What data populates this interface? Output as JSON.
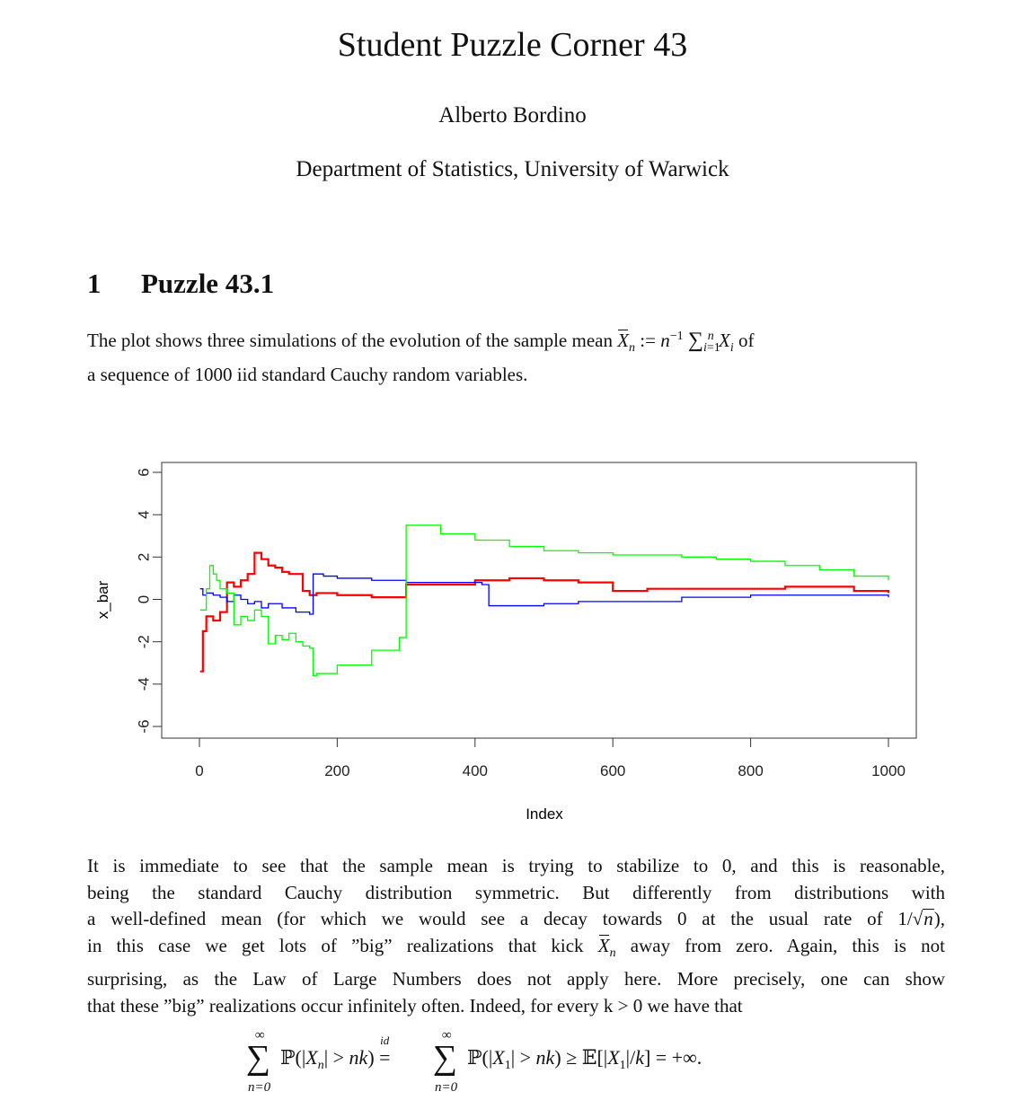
{
  "header": {
    "title": "Student Puzzle Corner 43",
    "author": "Alberto Bordino",
    "affiliation": "Department of Statistics, University of Warwick"
  },
  "section": {
    "number": "1",
    "title": "Puzzle 43.1"
  },
  "intro": {
    "line1_a": "The plot shows three simulations of the evolution of the sample mean",
    "line1_b": "of",
    "line2": "a sequence of 1000 iid standard Cauchy random variables."
  },
  "body": {
    "l1": "It is immediate to see that the sample mean is trying to stabilize to 0, and this is reasonable,",
    "l2": "being the standard Cauchy distribution symmetric. But differently from distributions with",
    "l3_a": "a well-defined mean (for which we would see a decay towards 0 at the usual rate of 1/",
    "l3_b": "),",
    "l4_a": "in this case we get lots of ”big” realizations that kick",
    "l4_b": "away from zero. Again, this is not",
    "l5": "surprising, as the Law of Large Numbers does not apply here. More precisely, one can show",
    "l6": "that these ”big” realizations occur infinitely often. Indeed, for every k > 0 we have that"
  },
  "chart_data": {
    "type": "line",
    "xlabel": "Index",
    "ylabel": "x_bar",
    "xlim": [
      0,
      1000
    ],
    "ylim": [
      -6,
      6
    ],
    "xticks": [
      "0",
      "200",
      "400",
      "600",
      "800",
      "1000"
    ],
    "yticks": [
      "-6",
      "-4",
      "-2",
      "0",
      "2",
      "4",
      "6"
    ],
    "series": [
      {
        "color": "#ff0000",
        "x": [
          1,
          5,
          10,
          20,
          30,
          40,
          50,
          60,
          70,
          80,
          90,
          100,
          110,
          120,
          130,
          150,
          160,
          170,
          200,
          250,
          300,
          350,
          400,
          450,
          500,
          550,
          600,
          650,
          700,
          800,
          850,
          900,
          950,
          1000
        ],
        "y": [
          -3.4,
          -1.5,
          -0.8,
          -1.0,
          -0.6,
          0.8,
          0.6,
          0.9,
          1.2,
          2.2,
          1.9,
          1.6,
          1.5,
          1.3,
          1.2,
          0.4,
          0.2,
          0.3,
          0.2,
          0.1,
          0.7,
          0.7,
          0.9,
          1.0,
          0.9,
          0.8,
          0.4,
          0.5,
          0.5,
          0.5,
          0.6,
          0.6,
          0.4,
          0.3
        ]
      },
      {
        "color": "#0000ff",
        "x": [
          1,
          5,
          10,
          20,
          30,
          40,
          50,
          60,
          70,
          80,
          90,
          100,
          120,
          140,
          160,
          165,
          180,
          200,
          250,
          300,
          350,
          400,
          410,
          420,
          440,
          450,
          500,
          550,
          600,
          700,
          800,
          900,
          1000
        ],
        "y": [
          0.5,
          0.2,
          0.3,
          0.2,
          0.1,
          -0.1,
          0.2,
          0.0,
          -0.2,
          -0.1,
          -0.4,
          -0.2,
          -0.4,
          -0.6,
          -0.7,
          1.2,
          1.1,
          1.0,
          0.9,
          0.8,
          0.8,
          0.8,
          0.7,
          -0.3,
          -0.3,
          -0.3,
          -0.2,
          -0.1,
          -0.1,
          0.1,
          0.2,
          0.2,
          0.1
        ]
      },
      {
        "color": "#00ff00",
        "x": [
          1,
          10,
          15,
          20,
          25,
          30,
          40,
          50,
          60,
          70,
          80,
          90,
          100,
          110,
          120,
          130,
          140,
          150,
          160,
          165,
          170,
          200,
          250,
          290,
          300,
          350,
          400,
          450,
          500,
          550,
          600,
          650,
          700,
          750,
          800,
          850,
          900,
          950,
          1000
        ],
        "y": [
          -0.5,
          0.5,
          1.6,
          1.2,
          0.9,
          0.5,
          0.3,
          -1.2,
          -0.8,
          -1.0,
          -0.5,
          -0.8,
          -2.1,
          -1.7,
          -1.9,
          -1.6,
          -2.0,
          -2.2,
          -2.3,
          -3.6,
          -3.5,
          -3.1,
          -2.4,
          -1.8,
          3.5,
          3.1,
          2.8,
          2.5,
          2.3,
          2.2,
          2.1,
          2.1,
          2.0,
          1.9,
          1.8,
          1.6,
          1.4,
          1.1,
          0.9
        ]
      }
    ]
  }
}
